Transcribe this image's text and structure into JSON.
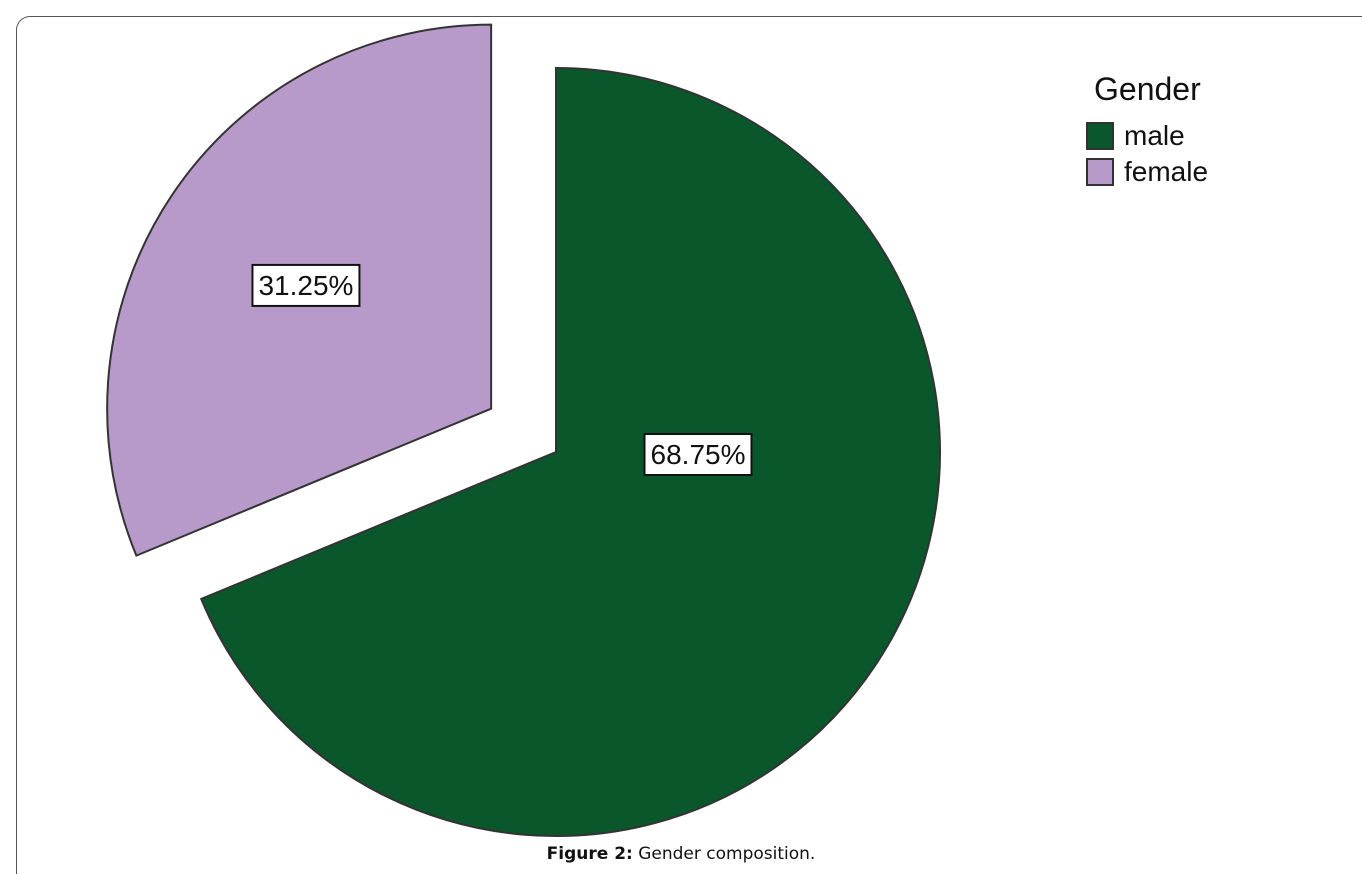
{
  "chart_data": {
    "type": "pie",
    "legend_title": "Gender",
    "legend_position": "top-right",
    "slices": [
      {
        "label": "male",
        "value": 68.75,
        "display": "68.75%",
        "color": "#0b572c",
        "exploded": false
      },
      {
        "label": "female",
        "value": 31.25,
        "display": "31.25%",
        "color": "#b79aca",
        "exploded": true
      }
    ]
  },
  "caption": {
    "label": "Figure 2:",
    "text": " Gender composition."
  }
}
